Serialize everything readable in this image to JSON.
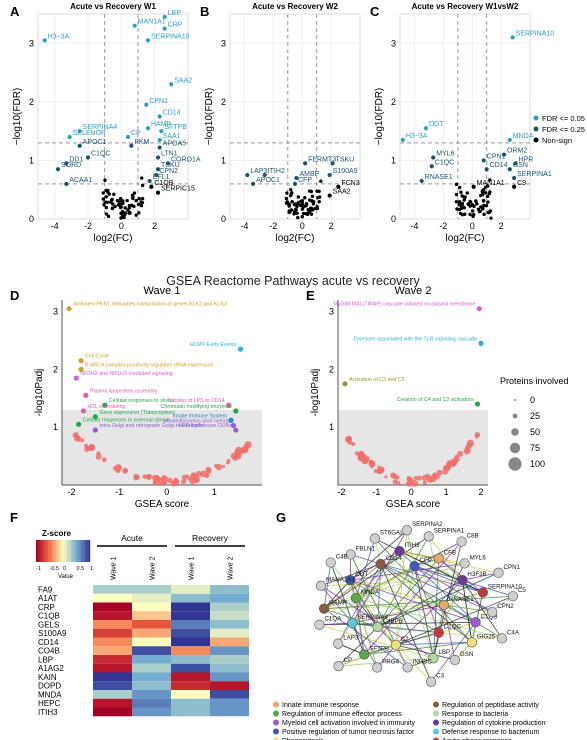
{
  "panel_letters": [
    "A",
    "B",
    "C",
    "D",
    "E",
    "F",
    "G"
  ],
  "colors": {
    "sig05": "#2a9fc6",
    "sig25": "#1a5570",
    "nonsign": "#000000",
    "gsea_dot": "#ef6f68",
    "gsea_bg": "#e6e6e6"
  },
  "volcano": {
    "xlabel": "log2(FC)",
    "ylabel": "−log10(FDR)",
    "legend": [
      "FDR <= 0.05",
      "FDR <= 0.25",
      "Non-sign"
    ]
  },
  "gsea_header": "GSEA Reactome Pathways acute vs recovery",
  "gsea": {
    "xlabel": "GSEA score",
    "ylabel": "-log10Padj",
    "size_legend_title": "Proteins involved",
    "size_legend_values": [
      "0",
      "25",
      "50",
      "75",
      "100"
    ]
  },
  "heatmap": {
    "colorkey_title": "Z-score",
    "colorkey_ticks": [
      "-1",
      "-0.5",
      "0",
      "0.5",
      "1"
    ],
    "colorkey_label": "Value",
    "group_labels": [
      "Acute",
      "Recovery"
    ],
    "column_labels": [
      "Wave 1",
      "Wave 2",
      "Wave 1",
      "Wave 2"
    ],
    "rows": [
      "FA9",
      "A1AT",
      "CRP",
      "C1QB",
      "GELS",
      "S100A9",
      "CD14",
      "CO4B",
      "LBP",
      "A1AG2",
      "KAIN",
      "DOPD",
      "MNDA",
      "HEPC",
      "ITIH3"
    ],
    "values": [
      [
        0.3,
        0.3,
        0.1,
        0.4
      ],
      [
        0.0,
        0.1,
        0.4,
        0.5
      ],
      [
        -1.0,
        0.0,
        1.0,
        0.3
      ],
      [
        -0.9,
        -0.2,
        1.0,
        0.2
      ],
      [
        -0.4,
        -0.6,
        0.7,
        0.4
      ],
      [
        -0.7,
        -0.3,
        0.9,
        0.1
      ],
      [
        -0.4,
        0.0,
        1.0,
        -0.3
      ],
      [
        -0.3,
        0.9,
        -0.4,
        0.6
      ],
      [
        -0.8,
        0.5,
        0.4,
        0.3
      ],
      [
        -0.9,
        0.3,
        0.9,
        0.4
      ],
      [
        1.0,
        0.5,
        -0.9,
        0.6
      ],
      [
        0.9,
        0.4,
        -0.8,
        -0.9
      ],
      [
        0.3,
        0.6,
        0.0,
        0.9
      ],
      [
        -0.9,
        0.7,
        0.4,
        0.6
      ],
      [
        -1.0,
        0.6,
        0.4,
        0.6
      ]
    ]
  },
  "network": {
    "nodes": [
      "RNASE1",
      "C4BPB",
      "CFP",
      "C1QC",
      "MNDA",
      "H3F3B",
      "C7",
      "CD14",
      "C1QB",
      "SERPINA4",
      "CFB",
      "LBP",
      "DDT",
      "SERPINA10",
      "SFTPB",
      "ITIH3",
      "GIG25",
      "HAMP",
      "MYL6",
      "INHBC",
      "FBLN1",
      "CPN2",
      "LAP3",
      "SERPINA1",
      "GSN",
      "MANA1A1",
      "CPN1",
      "PRG4",
      "ST6GAL1",
      "C4A",
      "C1QA",
      "C8B",
      "C3",
      "C4B",
      "C5",
      "CP",
      "SERPINA2"
    ],
    "legend": [
      {
        "label": "Innate immune response",
        "color": "#e8a86a"
      },
      {
        "label": "Regulation of peptidase activity",
        "color": "#8c5a3c"
      },
      {
        "label": "Regulation of immune effector process",
        "color": "#5aa84a"
      },
      {
        "label": "Response to bacteria",
        "color": "#b5d99c"
      },
      {
        "label": "Myeloid cell activation involved in immunity",
        "color": "#9e5ac8"
      },
      {
        "label": "Regulation of cytokine production",
        "color": "#6a3a9a"
      },
      {
        "label": "Positive regulation of tumor necrosis factor",
        "color": "#3a5ab8"
      },
      {
        "label": "Defense response to bacterium",
        "color": "#5fc8d8"
      },
      {
        "label": "Phagocytosis",
        "color": "#f3e07a"
      },
      {
        "label": "Acute-phase response",
        "color": "#c8383a"
      }
    ]
  },
  "chart_data": [
    {
      "panel": "A",
      "type": "scatter",
      "title": "Acute vs Recovery W1",
      "xlabel": "log2(FC)",
      "ylabel": "−log10(FDR)",
      "xlim": [
        -5,
        4
      ],
      "ylim": [
        0,
        3.5
      ],
      "thresholds": {
        "x": [
          -1,
          1
        ],
        "y": [
          0.6,
          1.3
        ]
      },
      "labels": [
        {
          "t": "LBP",
          "x": 2.6,
          "y": 3.45
        },
        {
          "t": "MAN1A1",
          "x": 0.8,
          "y": 3.3
        },
        {
          "t": "CRP",
          "x": 2.6,
          "y": 3.25
        },
        {
          "t": "SERPINA10",
          "x": 1.6,
          "y": 3.05
        },
        {
          "t": "H3−3A",
          "x": -4.6,
          "y": 3.05
        },
        {
          "t": "SAA2",
          "x": 3.0,
          "y": 2.3
        },
        {
          "t": "CPN1",
          "x": 1.5,
          "y": 1.95
        },
        {
          "t": "CD14",
          "x": 2.3,
          "y": 1.75
        },
        {
          "t": "HAMP",
          "x": 1.6,
          "y": 1.55
        },
        {
          "t": "SERPINA4",
          "x": -2.5,
          "y": 1.5
        },
        {
          "t": "SFTPB",
          "x": 2.4,
          "y": 1.5
        },
        {
          "t": "SELENOP",
          "x": -3.1,
          "y": 1.4
        },
        {
          "t": "CP",
          "x": 0.4,
          "y": 1.4
        },
        {
          "t": "SAA1",
          "x": 2.3,
          "y": 1.35
        },
        {
          "t": "APOC1",
          "x": -2.5,
          "y": 1.25
        },
        {
          "t": "PKM",
          "x": 0.6,
          "y": 1.25
        },
        {
          "t": "APOA5",
          "x": 2.3,
          "y": 1.22
        },
        {
          "t": "C1QC",
          "x": -2.0,
          "y": 1.05
        },
        {
          "t": "LTN1",
          "x": 2.2,
          "y": 1.05
        },
        {
          "t": "DD1",
          "x": -3.3,
          "y": 0.95
        },
        {
          "t": "CORO1A",
          "x": 2.8,
          "y": 0.95
        },
        {
          "t": "SORD",
          "x": -3.8,
          "y": 0.85
        },
        {
          "t": "TSKU",
          "x": 2.2,
          "y": 0.85
        },
        {
          "t": "ACAA1",
          "x": -3.3,
          "y": 0.6
        },
        {
          "t": "CPN2",
          "x": 2.1,
          "y": 0.75
        },
        {
          "t": "EFL1",
          "x": 1.7,
          "y": 0.65
        },
        {
          "t": "C1QB",
          "x": 1.8,
          "y": 0.55
        },
        {
          "t": "SERPIC15",
          "x": 2.2,
          "y": 0.45
        }
      ]
    },
    {
      "panel": "B",
      "type": "scatter",
      "title": "Acute vs Recovery W2",
      "xlabel": "log2(FC)",
      "ylabel": "−log10(FDR)",
      "xlim": [
        -5,
        4
      ],
      "ylim": [
        0,
        3.5
      ],
      "thresholds": {
        "x": [
          -1,
          1
        ],
        "y": [
          0.6,
          1.3
        ]
      },
      "labels": [
        {
          "t": "FERMT3",
          "x": 0.2,
          "y": 0.95
        },
        {
          "t": "TSKU",
          "x": 2.1,
          "y": 0.95
        },
        {
          "t": "LAP3",
          "x": -3.8,
          "y": 0.75
        },
        {
          "t": "ITIH2",
          "x": -2.6,
          "y": 0.75
        },
        {
          "t": "S100A9",
          "x": 1.9,
          "y": 0.75
        },
        {
          "t": "AMBP",
          "x": -0.4,
          "y": 0.7
        },
        {
          "t": "APOC1",
          "x": -3.4,
          "y": 0.6
        },
        {
          "t": "CFP",
          "x": -0.5,
          "y": 0.6
        },
        {
          "t": "FCN3",
          "x": 2.5,
          "y": 0.55
        },
        {
          "t": "SAA2",
          "x": 1.9,
          "y": 0.4
        }
      ]
    },
    {
      "panel": "C",
      "type": "scatter",
      "title": "Acute vs Recovery W1vsW2",
      "xlabel": "log2(FC)",
      "ylabel": "−log10(FDR)",
      "xlim": [
        -5,
        4
      ],
      "ylim": [
        0,
        3.5
      ],
      "thresholds": {
        "x": [
          -1,
          1
        ],
        "y": [
          0.6,
          1.3
        ]
      },
      "labels": [
        {
          "t": "SERPINA10",
          "x": 2.8,
          "y": 3.1
        },
        {
          "t": "DDT",
          "x": -3.2,
          "y": 1.55
        },
        {
          "t": "H3−3A",
          "x": -4.8,
          "y": 1.35
        },
        {
          "t": "MNDA",
          "x": 2.6,
          "y": 1.35
        },
        {
          "t": "ORM2",
          "x": 2.2,
          "y": 1.1
        },
        {
          "t": "MYL6",
          "x": -2.7,
          "y": 1.05
        },
        {
          "t": "CPN1",
          "x": 0.8,
          "y": 1.0
        },
        {
          "t": "HPR",
          "x": 3.0,
          "y": 0.95
        },
        {
          "t": "C1QC",
          "x": -2.8,
          "y": 0.9
        },
        {
          "t": "CD14",
          "x": 1.0,
          "y": 0.85
        },
        {
          "t": "GSN",
          "x": 2.6,
          "y": 0.85
        },
        {
          "t": "SERPINA1",
          "x": 2.9,
          "y": 0.7
        },
        {
          "t": "RNASE1",
          "x": -3.5,
          "y": 0.65
        },
        {
          "t": "MAN1A1",
          "x": 0.1,
          "y": 0.55
        },
        {
          "t": "C9",
          "x": 2.9,
          "y": 0.55
        }
      ]
    },
    {
      "panel": "D",
      "type": "scatter",
      "title": "Wave 1",
      "xlabel": "GSEA score",
      "ylabel": "-log10Padj",
      "xlim": [
        -2.2,
        2.0
      ],
      "ylim": [
        0,
        3.2
      ],
      "labels": [
        {
          "t": "Activated PKN1 stimulates transcription of genes KLK2 and KLK3",
          "color": "#c9a227",
          "x": -2.05,
          "y": 3.05
        },
        {
          "t": "HCMV Early Events",
          "color": "#2bb3d6",
          "x": 1.55,
          "y": 2.35
        },
        {
          "t": "Cell Cycle",
          "color": "#c9a227",
          "x": -1.8,
          "y": 2.15
        },
        {
          "t": "B-WICH complex positively regulates rRNA expression",
          "color": "#c9a227",
          "x": -1.8,
          "y": 2.0
        },
        {
          "t": "NR1H2 and NR1H3-mediated signaling",
          "color": "#d45fcf",
          "x": -1.9,
          "y": 1.85
        },
        {
          "t": "Plasma lipoprotein assembly",
          "color": "#e05fa8",
          "x": -1.7,
          "y": 1.55
        },
        {
          "t": "Cellular responses to stress",
          "color": "#22a84a",
          "x": -1.3,
          "y": 1.38
        },
        {
          "t": "Transfer of LPS to CD14",
          "color": "#e05fa8",
          "x": 1.3,
          "y": 1.38
        },
        {
          "t": "HDL remodeling",
          "color": "#e05fa8",
          "x": -1.75,
          "y": 1.28
        },
        {
          "t": "Chromatin modifying enzymes",
          "color": "#22a84a",
          "x": 1.45,
          "y": 1.28
        },
        {
          "t": "Gene expression (Transcription)",
          "color": "#22a84a",
          "x": -1.5,
          "y": 1.18
        },
        {
          "t": "Innate Immune System",
          "color": "#2b7fd6",
          "x": 1.35,
          "y": 1.12
        },
        {
          "t": "Cellular responses to external stimuli",
          "color": "#22a84a",
          "x": -1.85,
          "y": 1.05
        },
        {
          "t": "Metallothioneins bind metals",
          "color": "#8f5fd6",
          "x": 1.4,
          "y": 1.03
        },
        {
          "t": "Intra-Golgi and retrograde Golgi-to-ER traffic",
          "color": "#8f5fd6",
          "x": -1.5,
          "y": 0.95
        },
        {
          "t": "Metalloprotease DUBs",
          "color": "#8f5fd6",
          "x": 1.45,
          "y": 0.95
        }
      ]
    },
    {
      "panel": "E",
      "type": "scatter",
      "title": "Wave 2",
      "xlabel": "GSEA score",
      "ylabel": "-log10Padj",
      "xlim": [
        -2.1,
        2.2
      ],
      "ylim": [
        0,
        3.2
      ],
      "labels": [
        {
          "t": "MyD88:MAL(TIRAP) cascade initiated on plasma membrane",
          "color": "#d45fcf",
          "x": 1.95,
          "y": 3.05
        },
        {
          "t": "Diseases associated with the TLR signaling cascade",
          "color": "#2bb3d6",
          "x": 2.0,
          "y": 2.45
        },
        {
          "t": "Activation of C3 and C5",
          "color": "#9a9a2a",
          "x": -1.9,
          "y": 1.75
        },
        {
          "t": "Creation of C4 and C2 activators",
          "color": "#22a84a",
          "x": 1.9,
          "y": 1.4
        }
      ]
    },
    {
      "panel": "F",
      "type": "heatmap",
      "title": "",
      "x": [
        "Acute Wave 1",
        "Acute Wave 2",
        "Recovery Wave 1",
        "Recovery Wave 2"
      ],
      "y": [
        "FA9",
        "A1AT",
        "CRP",
        "C1QB",
        "GELS",
        "S100A9",
        "CD14",
        "CO4B",
        "LBP",
        "A1AG2",
        "KAIN",
        "DOPD",
        "MNDA",
        "HEPC",
        "ITIH3"
      ],
      "zlim": [
        -1,
        1
      ]
    }
  ]
}
